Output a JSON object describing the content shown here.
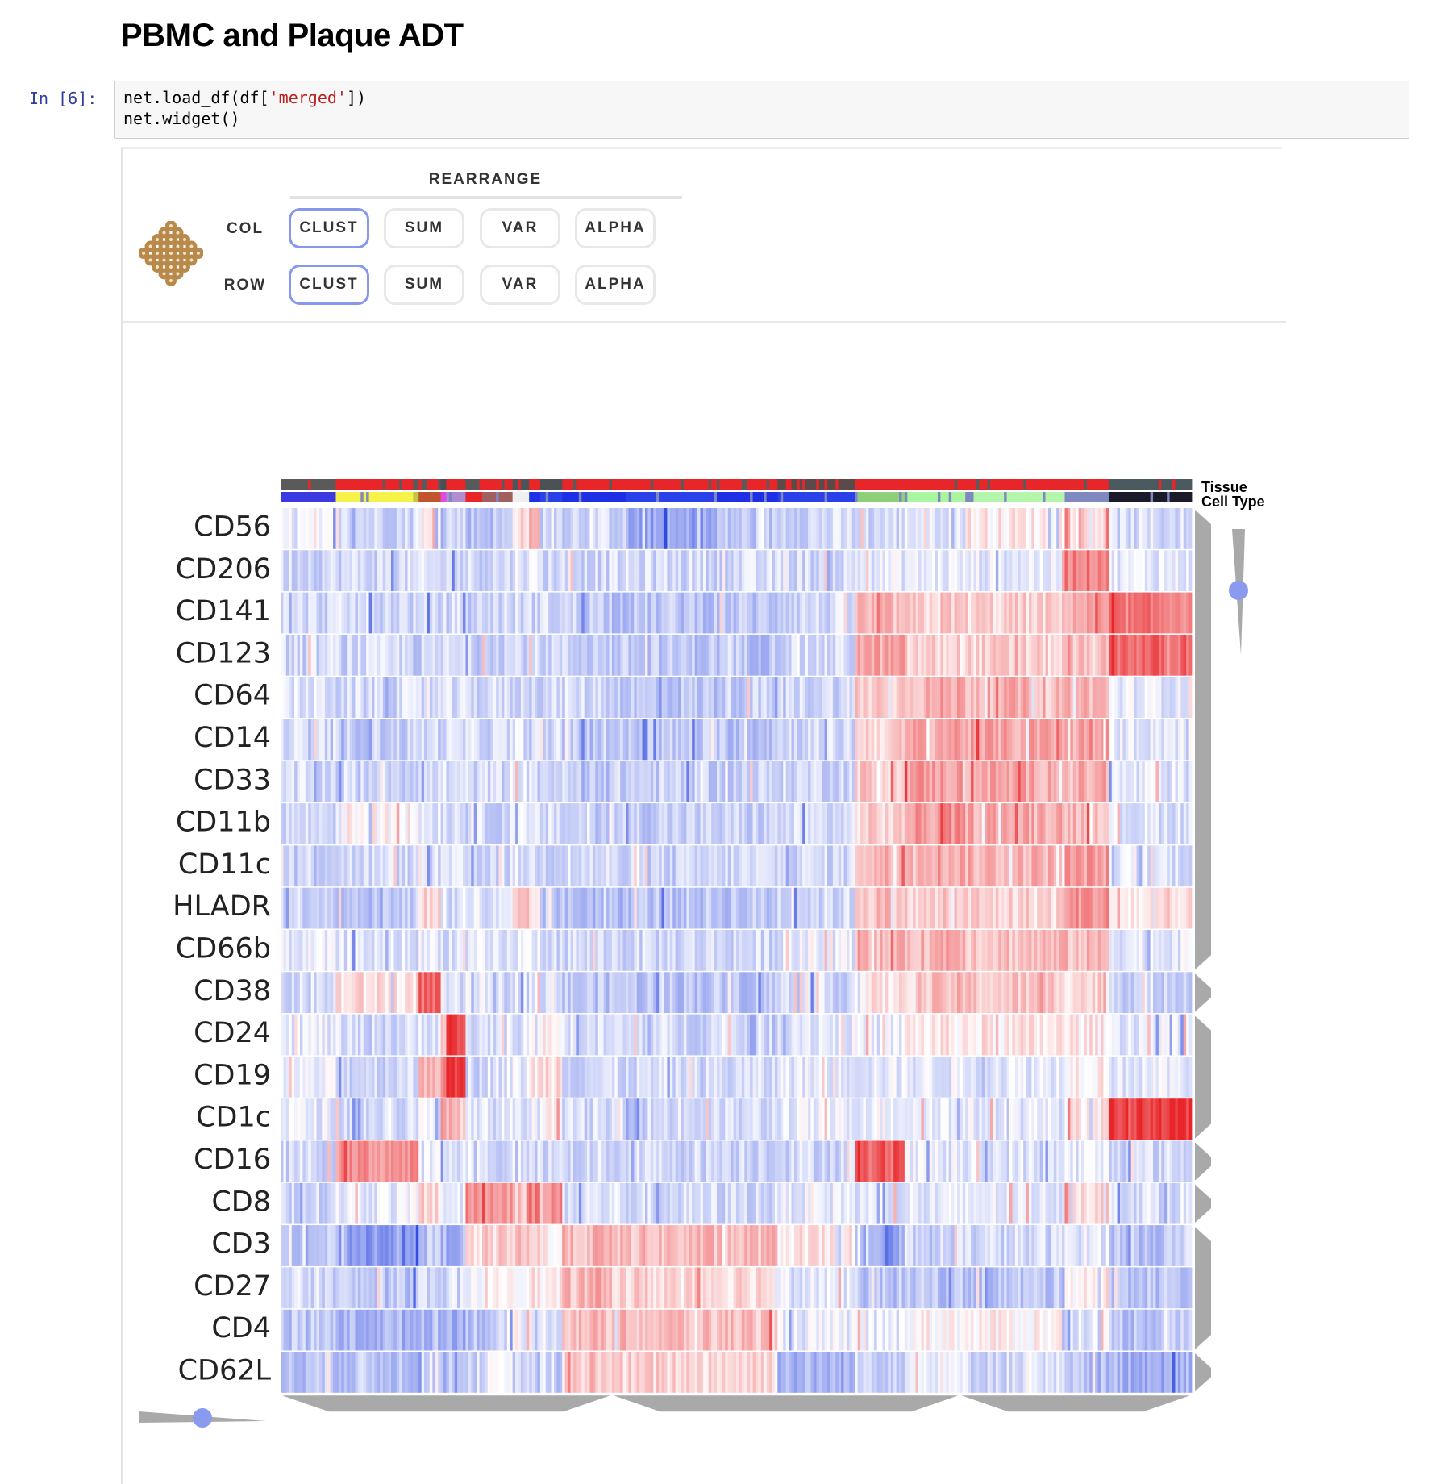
{
  "notebook": {
    "title": "PBMC and Plaque ADT",
    "prompt": "In [6]:",
    "code": {
      "line1_prefix": "net.load_df(df[",
      "line1_string": "'merged'",
      "line1_suffix": "])",
      "line2": "net.widget()"
    }
  },
  "widget": {
    "logo_icon": "clustergrammer-logo-icon",
    "rearrange_title": "REARRANGE",
    "col_label": "COL",
    "row_label": "ROW",
    "buttons": [
      "CLUST",
      "SUM",
      "VAR",
      "ALPHA"
    ],
    "active_col": "CLUST",
    "active_row": "CLUST",
    "colors": {
      "button_active_border": "#8797ee",
      "slider_knob": "#8a9aee",
      "logo": "#b8894a",
      "dendrogram": "#a9a9a9",
      "heat_up": "#e8262a",
      "heat_down": "#2b47e0"
    }
  },
  "chart_data": {
    "type": "heatmap",
    "rows": [
      "CD56",
      "CD206",
      "CD141",
      "CD123",
      "CD64",
      "CD14",
      "CD33",
      "CD11b",
      "CD11c",
      "HLADR",
      "CD66b",
      "CD38",
      "CD24",
      "CD19",
      "CD1c",
      "CD16",
      "CD8",
      "CD3",
      "CD27",
      "CD4",
      "CD62L"
    ],
    "category_bars": [
      "Tissue",
      "Cell Type"
    ],
    "column_clusters": 24,
    "column_count": 330,
    "cluster_edges": [
      0,
      20,
      48,
      50,
      58,
      60,
      67,
      73,
      84,
      90,
      94,
      102,
      112,
      118,
      120,
      125,
      158,
      180,
      208,
      226,
      239,
      248,
      284,
      300,
      330
    ],
    "tissue_colors": [
      "#5a5a5a",
      "#e8262a",
      "#555a5a",
      "#e8262a",
      "#4a4e52",
      "#e8262a",
      "#555a5a",
      "#e8262a",
      "#4d5558",
      "#e8262a",
      "#4a5256",
      "#e8262a",
      "#e8262a",
      "#e8262a",
      "#e8262a",
      "#e8262a",
      "#e8262a",
      "#5a4a4a",
      "#e8262a",
      "#e8262a",
      "#e8262a",
      "#e8262a",
      "#e8262a",
      "#4a5a5e"
    ],
    "celltype_colors": [
      "#3a3ae0",
      "#f6f24a",
      "#c5c544",
      "#c0542a",
      "#e14ae0",
      "#b08fd0",
      "#e8262a",
      "#a06060",
      "#f0f0f0",
      "#1f2fe6",
      "#2a40e8",
      "#1f2fe6",
      "#1f2fe6",
      "#1f2fe6",
      "#1f2fe6",
      "#2a40e8",
      "#1f2fe6",
      "#2a40e8",
      "#8ecf7a",
      "#aaf5a0",
      "#aaf5a0",
      "#b5f5ab",
      "#8088c0",
      "#1a1a2a"
    ],
    "values_by_row": {
      "CD56": [
        -0.1,
        -0.2,
        -0.1,
        0.05,
        -0.2,
        -0.2,
        -0.3,
        -0.3,
        0.2,
        0.3,
        -0.2,
        -0.2,
        -0.2,
        -0.2,
        -0.2,
        -0.5,
        -0.3,
        -0.2,
        -0.2,
        -0.1,
        -0.1,
        0.1,
        0.2,
        -0.2
      ],
      "CD206": [
        -0.2,
        -0.2,
        -0.2,
        -0.2,
        -0.2,
        -0.2,
        -0.2,
        -0.2,
        -0.1,
        -0.1,
        -0.2,
        -0.2,
        -0.2,
        -0.2,
        -0.2,
        -0.2,
        -0.2,
        -0.2,
        -0.1,
        -0.1,
        -0.1,
        -0.1,
        0.6,
        -0.1
      ],
      "CD141": [
        -0.2,
        -0.2,
        -0.25,
        -0.25,
        -0.2,
        -0.2,
        -0.25,
        -0.2,
        -0.2,
        -0.2,
        -0.2,
        -0.25,
        -0.25,
        -0.25,
        -0.3,
        -0.3,
        -0.3,
        -0.2,
        0.3,
        0.2,
        0.25,
        0.2,
        0.4,
        0.6
      ],
      "CD123": [
        -0.2,
        -0.2,
        -0.25,
        -0.25,
        -0.2,
        -0.2,
        -0.25,
        -0.2,
        -0.2,
        -0.2,
        -0.2,
        -0.25,
        -0.25,
        -0.25,
        -0.3,
        -0.3,
        -0.3,
        -0.2,
        0.4,
        0.2,
        0.2,
        0.2,
        0.25,
        0.7
      ],
      "CD64": [
        -0.15,
        -0.2,
        -0.2,
        -0.2,
        -0.2,
        -0.2,
        -0.2,
        -0.2,
        -0.2,
        -0.2,
        -0.2,
        -0.2,
        -0.2,
        -0.2,
        -0.25,
        -0.3,
        -0.25,
        -0.2,
        0.25,
        0.35,
        0.4,
        0.35,
        0.35,
        -0.1
      ],
      "CD14": [
        -0.2,
        -0.25,
        -0.2,
        -0.2,
        -0.15,
        -0.2,
        -0.2,
        -0.2,
        -0.15,
        -0.2,
        -0.2,
        -0.3,
        -0.3,
        -0.3,
        -0.3,
        -0.3,
        -0.3,
        -0.2,
        0.2,
        0.4,
        0.45,
        0.4,
        0.4,
        -0.1
      ],
      "CD33": [
        -0.2,
        -0.2,
        -0.2,
        -0.2,
        -0.15,
        -0.2,
        -0.2,
        -0.2,
        -0.15,
        -0.2,
        -0.2,
        -0.25,
        -0.25,
        -0.25,
        -0.25,
        -0.25,
        -0.25,
        -0.2,
        0.25,
        0.45,
        0.45,
        0.4,
        0.35,
        -0.15
      ],
      "CD11b": [
        -0.2,
        0.05,
        0.05,
        -0.1,
        -0.15,
        -0.15,
        -0.2,
        -0.2,
        -0.15,
        -0.2,
        -0.2,
        -0.25,
        -0.25,
        -0.25,
        -0.25,
        -0.25,
        -0.25,
        -0.2,
        0.2,
        0.45,
        0.5,
        0.4,
        0.35,
        -0.15
      ],
      "CD11c": [
        -0.2,
        -0.2,
        -0.2,
        -0.2,
        -0.15,
        -0.2,
        -0.2,
        -0.2,
        -0.15,
        -0.2,
        -0.2,
        -0.2,
        -0.2,
        -0.2,
        -0.25,
        -0.25,
        -0.2,
        -0.2,
        0.35,
        0.45,
        0.4,
        0.35,
        0.45,
        -0.15
      ],
      "HLADR": [
        -0.2,
        -0.3,
        -0.1,
        0.2,
        -0.1,
        -0.2,
        -0.1,
        -0.2,
        0.2,
        0.1,
        -0.3,
        -0.35,
        -0.35,
        -0.35,
        -0.3,
        -0.3,
        -0.3,
        -0.2,
        0.3,
        0.2,
        0.25,
        0.2,
        0.5,
        0.1
      ],
      "CD66b": [
        -0.1,
        -0.15,
        -0.15,
        -0.1,
        -0.15,
        -0.15,
        -0.15,
        -0.2,
        -0.1,
        -0.1,
        -0.15,
        -0.2,
        -0.2,
        -0.2,
        -0.2,
        -0.2,
        -0.2,
        -0.1,
        0.3,
        0.35,
        0.45,
        0.3,
        0.3,
        -0.1
      ],
      "CD38": [
        -0.2,
        0.15,
        0.2,
        0.7,
        -0.1,
        -0.2,
        -0.1,
        -0.2,
        -0.1,
        -0.1,
        -0.2,
        -0.3,
        -0.3,
        -0.3,
        -0.25,
        -0.3,
        -0.3,
        -0.2,
        0.1,
        0.25,
        0.3,
        0.25,
        0.2,
        -0.2
      ],
      "CD24": [
        -0.1,
        -0.2,
        -0.2,
        -0.1,
        0.3,
        0.8,
        -0.2,
        -0.15,
        -0.1,
        -0.1,
        0.1,
        -0.2,
        -0.2,
        -0.2,
        -0.2,
        -0.2,
        -0.2,
        -0.1,
        -0.1,
        0.1,
        0.1,
        0.1,
        0.1,
        -0.1
      ],
      "CD19": [
        -0.1,
        -0.2,
        -0.2,
        0.4,
        0.5,
        0.9,
        -0.2,
        -0.15,
        -0.1,
        0.1,
        0.2,
        -0.2,
        -0.2,
        -0.2,
        -0.2,
        -0.2,
        -0.2,
        -0.1,
        -0.1,
        -0.1,
        -0.1,
        -0.1,
        0.1,
        -0.1
      ],
      "CD1c": [
        -0.1,
        -0.2,
        -0.2,
        -0.1,
        0.5,
        0.3,
        -0.2,
        -0.15,
        -0.1,
        -0.1,
        0.1,
        -0.2,
        -0.2,
        -0.2,
        -0.2,
        -0.2,
        -0.2,
        -0.1,
        -0.05,
        -0.05,
        -0.1,
        -0.1,
        0.1,
        0.9
      ],
      "CD16": [
        -0.2,
        0.5,
        0.45,
        -0.1,
        -0.15,
        -0.15,
        -0.2,
        -0.2,
        -0.15,
        -0.2,
        -0.2,
        -0.2,
        -0.2,
        -0.2,
        -0.2,
        -0.2,
        -0.2,
        -0.2,
        0.7,
        -0.1,
        -0.15,
        -0.15,
        -0.1,
        -0.2
      ],
      "CD8": [
        -0.2,
        -0.1,
        0.1,
        0.2,
        -0.1,
        -0.1,
        0.5,
        0.5,
        0.3,
        0.6,
        0.5,
        -0.15,
        -0.15,
        -0.15,
        -0.15,
        -0.2,
        -0.2,
        -0.1,
        -0.15,
        -0.15,
        -0.15,
        -0.1,
        0.2,
        -0.15
      ],
      "CD3": [
        -0.3,
        -0.5,
        -0.5,
        -0.3,
        -0.4,
        -0.4,
        0.15,
        0.2,
        0.25,
        0.2,
        0.1,
        0.3,
        0.35,
        0.3,
        0.3,
        0.3,
        0.3,
        0.1,
        -0.5,
        -0.3,
        -0.2,
        -0.2,
        -0.1,
        -0.3
      ],
      "CD27": [
        -0.2,
        -0.3,
        -0.3,
        -0.2,
        -0.2,
        -0.2,
        -0.1,
        0.1,
        0.1,
        0.1,
        0.05,
        0.3,
        0.35,
        0.3,
        0.25,
        0.2,
        0.2,
        -0.1,
        -0.3,
        -0.3,
        -0.3,
        -0.3,
        0.1,
        -0.3
      ],
      "CD4": [
        -0.3,
        -0.4,
        -0.4,
        -0.35,
        -0.4,
        -0.4,
        -0.3,
        -0.3,
        -0.1,
        -0.2,
        -0.1,
        0.3,
        0.3,
        0.3,
        0.3,
        0.3,
        0.3,
        -0.1,
        -0.1,
        0.05,
        0.05,
        0.05,
        -0.1,
        -0.3
      ],
      "CD62L": [
        -0.3,
        -0.3,
        -0.3,
        -0.2,
        -0.35,
        -0.3,
        -0.2,
        -0.1,
        -0.2,
        -0.3,
        -0.2,
        0.2,
        0.3,
        0.25,
        0.2,
        0.2,
        0.2,
        -0.4,
        -0.2,
        -0.1,
        -0.1,
        -0.2,
        -0.35,
        -0.4
      ]
    }
  }
}
